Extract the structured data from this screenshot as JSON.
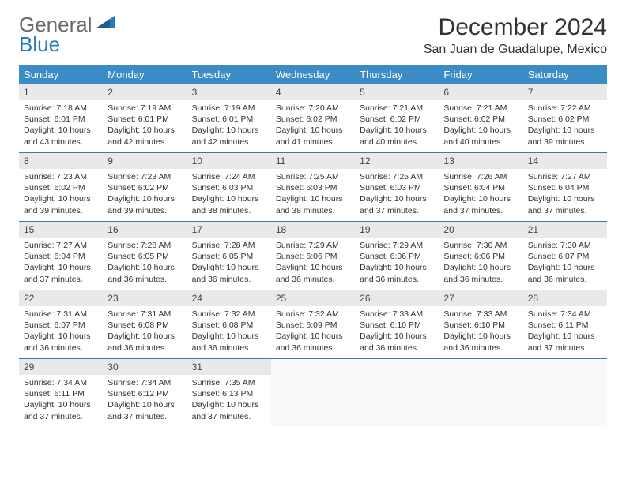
{
  "logo": {
    "line1": "General",
    "line2": "Blue"
  },
  "title": "December 2024",
  "location": "San Juan de Guadalupe, Mexico",
  "colors": {
    "header_bg": "#3b8bc4",
    "daynum_bg": "#e9e9e9",
    "row_border": "#3b7aa8",
    "logo_accent": "#2a7ab8",
    "logo_grey": "#6b6b6b"
  },
  "weekdays": [
    "Sunday",
    "Monday",
    "Tuesday",
    "Wednesday",
    "Thursday",
    "Friday",
    "Saturday"
  ],
  "grid_cols": 7,
  "days": [
    {
      "n": 1,
      "sr": "7:18 AM",
      "ss": "6:01 PM",
      "dl": "10 hours and 43 minutes."
    },
    {
      "n": 2,
      "sr": "7:19 AM",
      "ss": "6:01 PM",
      "dl": "10 hours and 42 minutes."
    },
    {
      "n": 3,
      "sr": "7:19 AM",
      "ss": "6:01 PM",
      "dl": "10 hours and 42 minutes."
    },
    {
      "n": 4,
      "sr": "7:20 AM",
      "ss": "6:02 PM",
      "dl": "10 hours and 41 minutes."
    },
    {
      "n": 5,
      "sr": "7:21 AM",
      "ss": "6:02 PM",
      "dl": "10 hours and 40 minutes."
    },
    {
      "n": 6,
      "sr": "7:21 AM",
      "ss": "6:02 PM",
      "dl": "10 hours and 40 minutes."
    },
    {
      "n": 7,
      "sr": "7:22 AM",
      "ss": "6:02 PM",
      "dl": "10 hours and 39 minutes."
    },
    {
      "n": 8,
      "sr": "7:23 AM",
      "ss": "6:02 PM",
      "dl": "10 hours and 39 minutes."
    },
    {
      "n": 9,
      "sr": "7:23 AM",
      "ss": "6:02 PM",
      "dl": "10 hours and 39 minutes."
    },
    {
      "n": 10,
      "sr": "7:24 AM",
      "ss": "6:03 PM",
      "dl": "10 hours and 38 minutes."
    },
    {
      "n": 11,
      "sr": "7:25 AM",
      "ss": "6:03 PM",
      "dl": "10 hours and 38 minutes."
    },
    {
      "n": 12,
      "sr": "7:25 AM",
      "ss": "6:03 PM",
      "dl": "10 hours and 37 minutes."
    },
    {
      "n": 13,
      "sr": "7:26 AM",
      "ss": "6:04 PM",
      "dl": "10 hours and 37 minutes."
    },
    {
      "n": 14,
      "sr": "7:27 AM",
      "ss": "6:04 PM",
      "dl": "10 hours and 37 minutes."
    },
    {
      "n": 15,
      "sr": "7:27 AM",
      "ss": "6:04 PM",
      "dl": "10 hours and 37 minutes."
    },
    {
      "n": 16,
      "sr": "7:28 AM",
      "ss": "6:05 PM",
      "dl": "10 hours and 36 minutes."
    },
    {
      "n": 17,
      "sr": "7:28 AM",
      "ss": "6:05 PM",
      "dl": "10 hours and 36 minutes."
    },
    {
      "n": 18,
      "sr": "7:29 AM",
      "ss": "6:06 PM",
      "dl": "10 hours and 36 minutes."
    },
    {
      "n": 19,
      "sr": "7:29 AM",
      "ss": "6:06 PM",
      "dl": "10 hours and 36 minutes."
    },
    {
      "n": 20,
      "sr": "7:30 AM",
      "ss": "6:06 PM",
      "dl": "10 hours and 36 minutes."
    },
    {
      "n": 21,
      "sr": "7:30 AM",
      "ss": "6:07 PM",
      "dl": "10 hours and 36 minutes."
    },
    {
      "n": 22,
      "sr": "7:31 AM",
      "ss": "6:07 PM",
      "dl": "10 hours and 36 minutes."
    },
    {
      "n": 23,
      "sr": "7:31 AM",
      "ss": "6:08 PM",
      "dl": "10 hours and 36 minutes."
    },
    {
      "n": 24,
      "sr": "7:32 AM",
      "ss": "6:08 PM",
      "dl": "10 hours and 36 minutes."
    },
    {
      "n": 25,
      "sr": "7:32 AM",
      "ss": "6:09 PM",
      "dl": "10 hours and 36 minutes."
    },
    {
      "n": 26,
      "sr": "7:33 AM",
      "ss": "6:10 PM",
      "dl": "10 hours and 36 minutes."
    },
    {
      "n": 27,
      "sr": "7:33 AM",
      "ss": "6:10 PM",
      "dl": "10 hours and 36 minutes."
    },
    {
      "n": 28,
      "sr": "7:34 AM",
      "ss": "6:11 PM",
      "dl": "10 hours and 37 minutes."
    },
    {
      "n": 29,
      "sr": "7:34 AM",
      "ss": "6:11 PM",
      "dl": "10 hours and 37 minutes."
    },
    {
      "n": 30,
      "sr": "7:34 AM",
      "ss": "6:12 PM",
      "dl": "10 hours and 37 minutes."
    },
    {
      "n": 31,
      "sr": "7:35 AM",
      "ss": "6:13 PM",
      "dl": "10 hours and 37 minutes."
    }
  ],
  "labels": {
    "sunrise": "Sunrise:",
    "sunset": "Sunset:",
    "daylight": "Daylight:"
  },
  "start_offset": 0,
  "total_cells": 35
}
